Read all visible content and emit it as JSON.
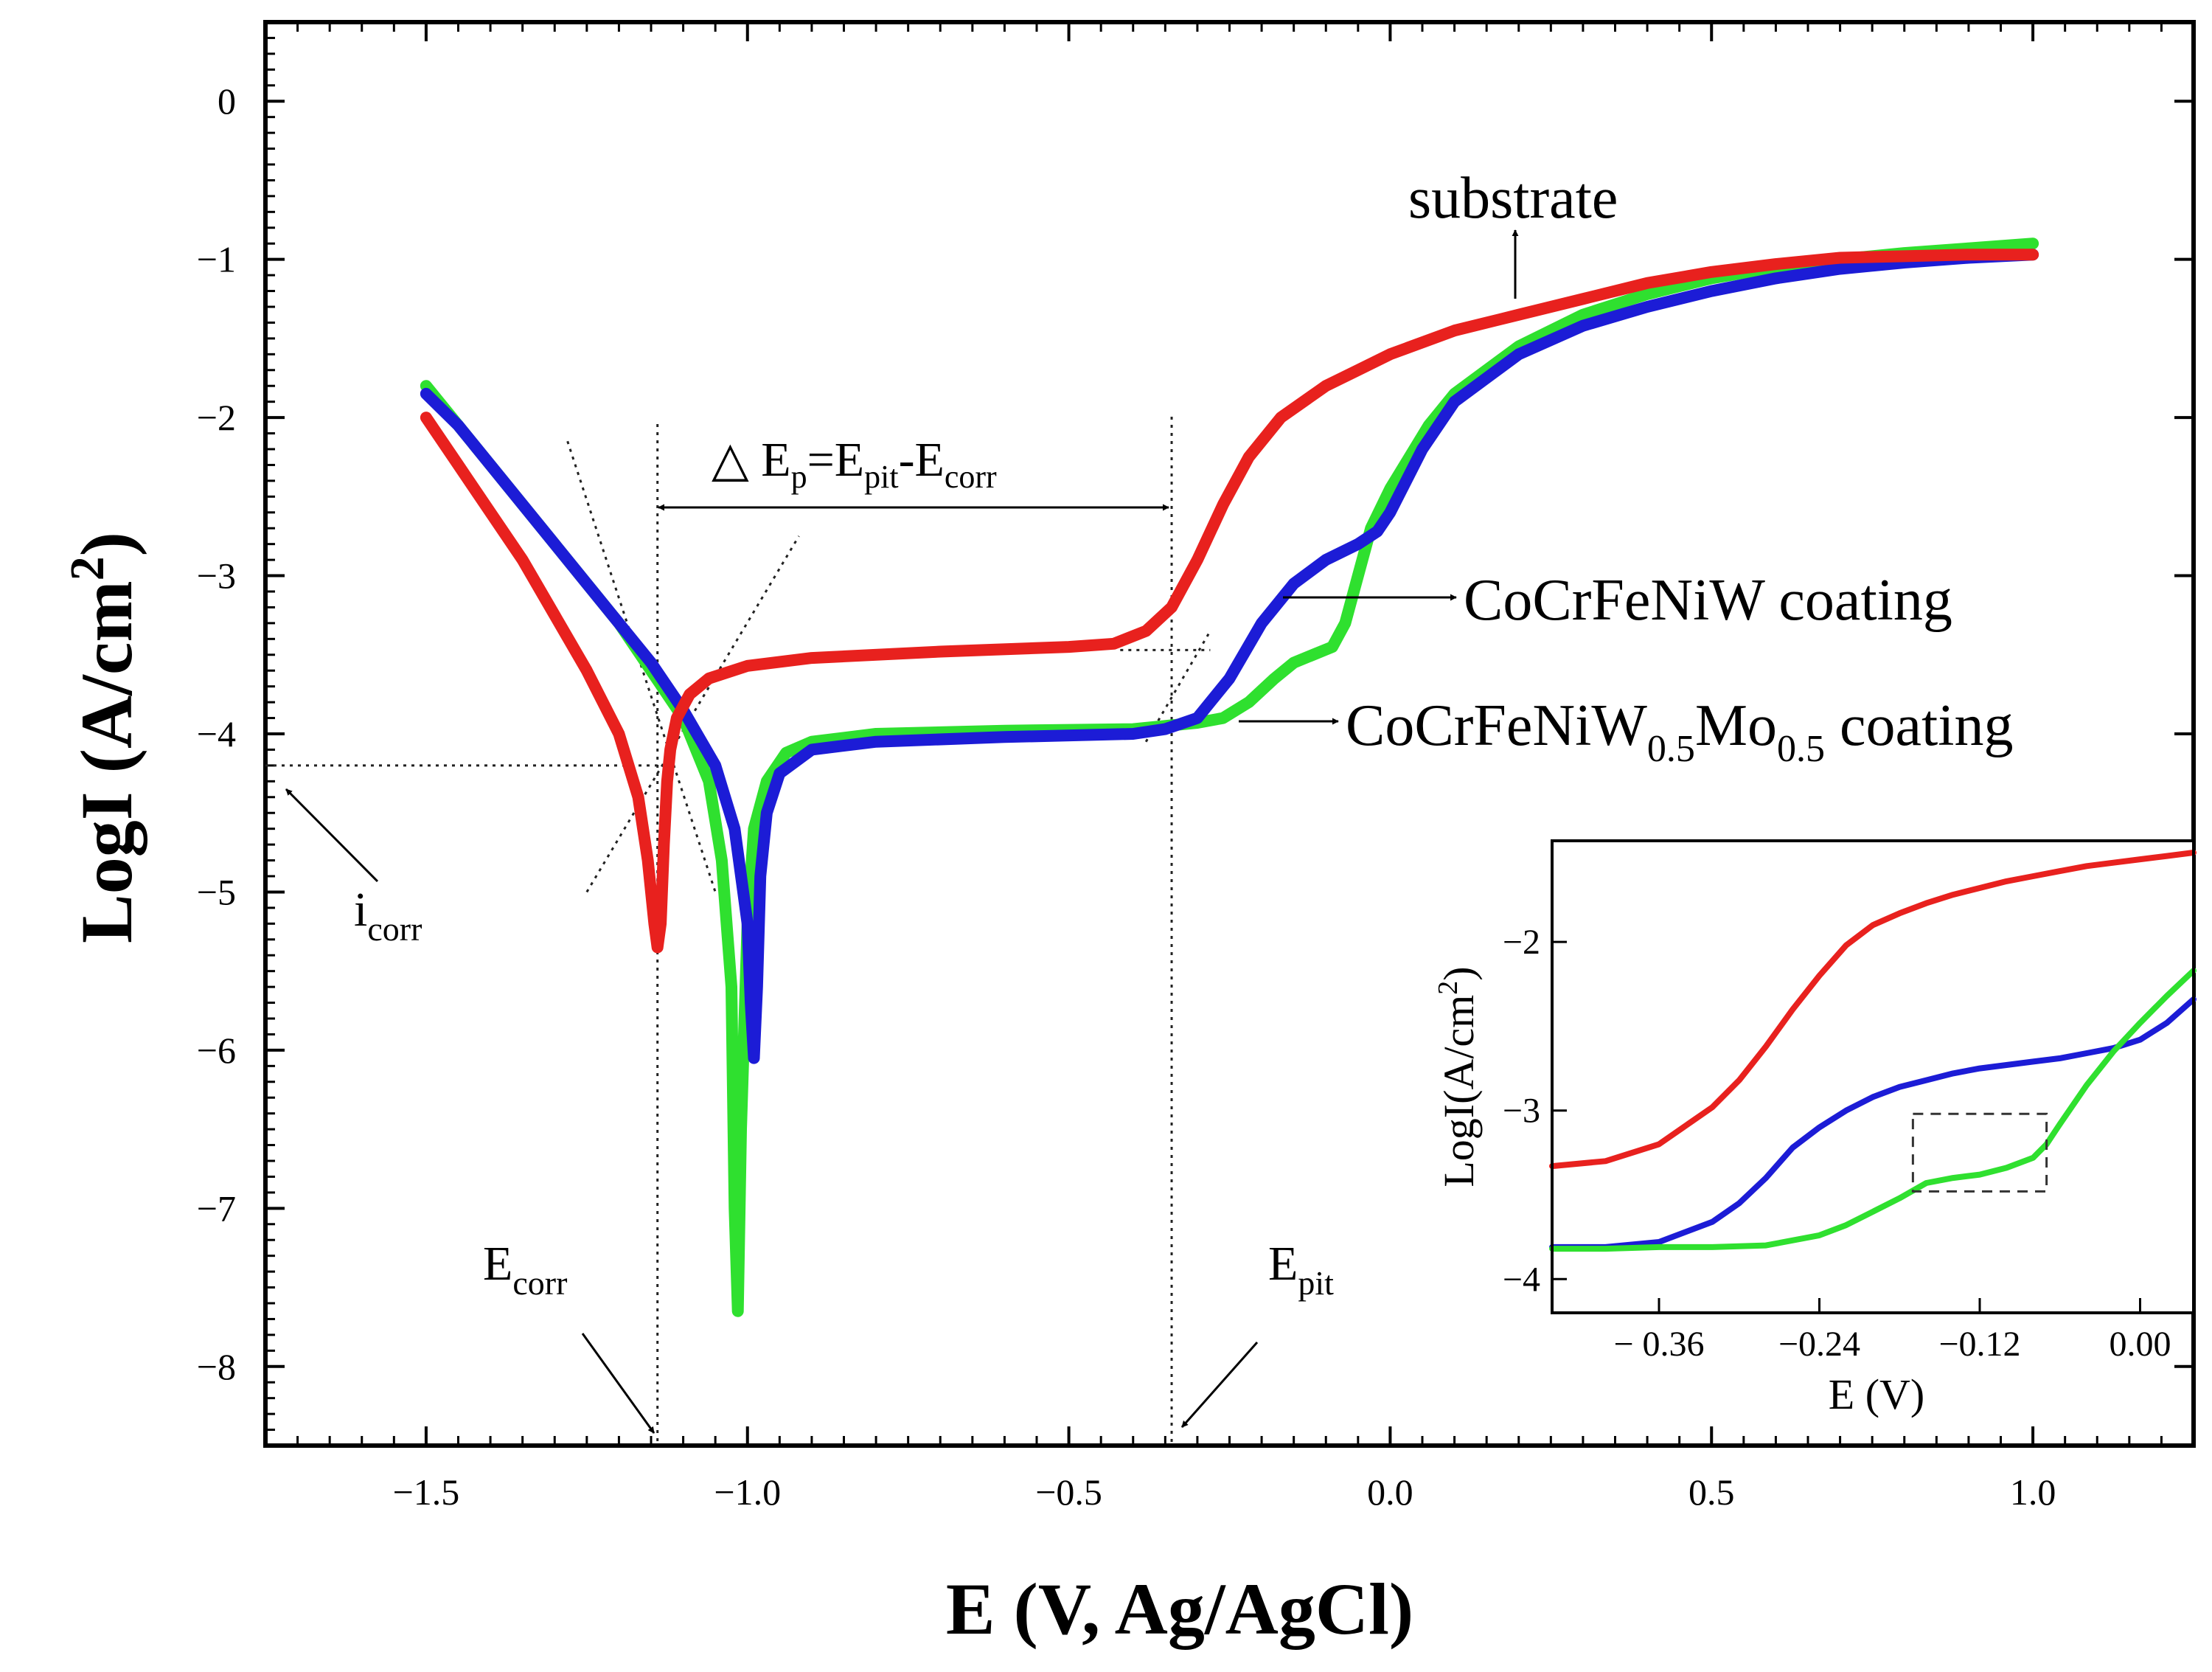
{
  "chart_data": [
    {
      "type": "line",
      "title": "",
      "xlabel": "E (V, Ag/AgCl)",
      "ylabel": "LogI (A/cm2)",
      "ylabel_parts": {
        "main": "LogI (A/cm",
        "sup": "2",
        "close": ")"
      },
      "xlim": [
        -1.75,
        1.25
      ],
      "ylim": [
        -8.5,
        0.5
      ],
      "xticks": [
        -1.5,
        -1.0,
        -0.5,
        0.0,
        0.5,
        1.0
      ],
      "xtick_labels": [
        "−1.5",
        "−1.0",
        "−0.5",
        "0.0",
        "0.5",
        "1.0"
      ],
      "yticks": [
        0,
        -1,
        -2,
        -3,
        -4,
        -5,
        -6,
        -7,
        -8
      ],
      "ytick_labels": [
        "0",
        "−1",
        "−2",
        "−3",
        "−4",
        "−5",
        "−6",
        "−7",
        "−8"
      ],
      "series": [
        {
          "name": "substrate",
          "color": "#e8211e",
          "x": [
            -1.5,
            -1.45,
            -1.4,
            -1.35,
            -1.3,
            -1.25,
            -1.2,
            -1.17,
            -1.155,
            -1.145,
            -1.14,
            -1.135,
            -1.13,
            -1.125,
            -1.12,
            -1.11,
            -1.09,
            -1.06,
            -1.0,
            -0.9,
            -0.7,
            -0.5,
            -0.43,
            -0.38,
            -0.34,
            -0.3,
            -0.26,
            -0.22,
            -0.17,
            -0.1,
            -0.05,
            0.0,
            0.1,
            0.2,
            0.3,
            0.4,
            0.5,
            0.6,
            0.7,
            0.8,
            0.9,
            1.0
          ],
          "y": [
            -2.0,
            -2.3,
            -2.6,
            -2.9,
            -3.25,
            -3.6,
            -4.0,
            -4.4,
            -4.8,
            -5.2,
            -5.35,
            -5.2,
            -4.7,
            -4.3,
            -4.1,
            -3.9,
            -3.75,
            -3.65,
            -3.57,
            -3.52,
            -3.48,
            -3.45,
            -3.43,
            -3.35,
            -3.2,
            -2.9,
            -2.55,
            -2.25,
            -2.0,
            -1.8,
            -1.7,
            -1.6,
            -1.45,
            -1.35,
            -1.25,
            -1.15,
            -1.08,
            -1.03,
            -0.99,
            -0.98,
            -0.97,
            -0.97
          ]
        },
        {
          "name": "CoCrFeNiW coating",
          "color": "#1c1cd6",
          "x": [
            -1.5,
            -1.45,
            -1.4,
            -1.35,
            -1.3,
            -1.25,
            -1.2,
            -1.15,
            -1.1,
            -1.05,
            -1.02,
            -1.0,
            -0.995,
            -0.99,
            -0.985,
            -0.98,
            -0.97,
            -0.95,
            -0.9,
            -0.8,
            -0.6,
            -0.4,
            -0.35,
            -0.3,
            -0.25,
            -0.2,
            -0.15,
            -0.1,
            -0.05,
            -0.02,
            0.0,
            0.05,
            0.1,
            0.2,
            0.3,
            0.4,
            0.5,
            0.6,
            0.7,
            0.8,
            0.9,
            1.0
          ],
          "y": [
            -1.85,
            -2.05,
            -2.3,
            -2.55,
            -2.8,
            -3.05,
            -3.3,
            -3.55,
            -3.85,
            -4.2,
            -4.6,
            -5.2,
            -5.7,
            -6.05,
            -5.6,
            -4.9,
            -4.5,
            -4.25,
            -4.1,
            -4.05,
            -4.02,
            -4.0,
            -3.97,
            -3.9,
            -3.65,
            -3.3,
            -3.05,
            -2.9,
            -2.8,
            -2.72,
            -2.6,
            -2.2,
            -1.9,
            -1.6,
            -1.42,
            -1.3,
            -1.2,
            -1.12,
            -1.06,
            -1.02,
            -0.99,
            -0.97
          ]
        },
        {
          "name": "CoCrFeNiW0.5Mo0.5 coating",
          "color": "#2fe02f",
          "x": [
            -1.5,
            -1.45,
            -1.4,
            -1.35,
            -1.3,
            -1.25,
            -1.2,
            -1.15,
            -1.1,
            -1.06,
            -1.04,
            -1.025,
            -1.02,
            -1.015,
            -1.01,
            -1.0,
            -0.99,
            -0.97,
            -0.94,
            -0.9,
            -0.8,
            -0.6,
            -0.4,
            -0.3,
            -0.26,
            -0.22,
            -0.18,
            -0.15,
            -0.12,
            -0.09,
            -0.07,
            -0.05,
            -0.03,
            0.0,
            0.03,
            0.06,
            0.1,
            0.2,
            0.3,
            0.4,
            0.5,
            0.6,
            0.7,
            0.8,
            0.9,
            1.0
          ],
          "y": [
            -1.8,
            -2.05,
            -2.3,
            -2.55,
            -2.8,
            -3.05,
            -3.3,
            -3.6,
            -3.9,
            -4.3,
            -4.8,
            -5.6,
            -7.0,
            -7.65,
            -6.5,
            -5.2,
            -4.6,
            -4.3,
            -4.12,
            -4.05,
            -4.0,
            -3.98,
            -3.97,
            -3.93,
            -3.9,
            -3.8,
            -3.65,
            -3.55,
            -3.5,
            -3.45,
            -3.3,
            -3.0,
            -2.7,
            -2.45,
            -2.25,
            -2.05,
            -1.85,
            -1.55,
            -1.35,
            -1.22,
            -1.12,
            -1.05,
            -1.0,
            -0.96,
            -0.93,
            -0.9
          ]
        }
      ],
      "annotations": {
        "substrate_label": "substrate",
        "coating1_label": "CoCrFeNiW coating",
        "coating2_label_main": "CoCrFeNiW",
        "coating2_sub1": "0.5",
        "coating2_mid": "Mo",
        "coating2_sub2": "0.5",
        "coating2_tail": " coating",
        "delta_prefix": "△ E",
        "delta_sub_p": "p",
        "delta_eq": "=E",
        "delta_sub_pit": "pit",
        "delta_minus": "-E",
        "delta_sub_corr": "corr",
        "icorr_main": "i",
        "icorr_sub": "corr",
        "ecorr_main": "E",
        "ecorr_sub": "corr",
        "epit_main": "E",
        "epit_sub": "pit",
        "ecorr_value": -1.14,
        "epit_value": -0.34,
        "icorr_value": -4.2
      }
    },
    {
      "type": "line",
      "title": "",
      "xlabel": "E (V)",
      "ylabel": "LogI(A/cm2)",
      "ylabel_parts": {
        "main": "LogI(A/cm",
        "sup": "2",
        "close": ")"
      },
      "xlim": [
        -0.44,
        0.04
      ],
      "ylim": [
        -4.2,
        -1.4
      ],
      "xticks": [
        -0.36,
        -0.24,
        -0.12,
        0.0
      ],
      "xtick_labels": [
        "− 0.36",
        "−0.24",
        "−0.12",
        "0.00"
      ],
      "yticks": [
        -2,
        -3,
        -4
      ],
      "ytick_labels": [
        "−2",
        "−3",
        "−4"
      ],
      "zoom_box": {
        "x": [
          -0.17,
          -0.07
        ],
        "y": [
          -3.48,
          -3.02
        ]
      },
      "series": [
        {
          "name": "substrate",
          "color": "#e8211e",
          "x": [
            -0.44,
            -0.4,
            -0.36,
            -0.32,
            -0.3,
            -0.28,
            -0.26,
            -0.24,
            -0.22,
            -0.2,
            -0.18,
            -0.16,
            -0.14,
            -0.12,
            -0.1,
            -0.08,
            -0.06,
            -0.04,
            -0.02,
            0.0,
            0.02,
            0.04
          ],
          "y": [
            -3.33,
            -3.3,
            -3.2,
            -2.98,
            -2.82,
            -2.62,
            -2.4,
            -2.2,
            -2.02,
            -1.9,
            -1.83,
            -1.77,
            -1.72,
            -1.68,
            -1.64,
            -1.61,
            -1.58,
            -1.55,
            -1.53,
            -1.51,
            -1.49,
            -1.47
          ]
        },
        {
          "name": "CoCrFeNiW coating",
          "color": "#1c1cd6",
          "x": [
            -0.44,
            -0.4,
            -0.36,
            -0.32,
            -0.3,
            -0.28,
            -0.26,
            -0.24,
            -0.22,
            -0.2,
            -0.18,
            -0.16,
            -0.14,
            -0.12,
            -0.1,
            -0.08,
            -0.06,
            -0.04,
            -0.02,
            0.0,
            0.02,
            0.04
          ],
          "y": [
            -3.81,
            -3.81,
            -3.78,
            -3.66,
            -3.55,
            -3.4,
            -3.22,
            -3.1,
            -3.0,
            -2.92,
            -2.86,
            -2.82,
            -2.78,
            -2.75,
            -2.73,
            -2.71,
            -2.69,
            -2.66,
            -2.63,
            -2.58,
            -2.48,
            -2.34
          ]
        },
        {
          "name": "CoCrFeNiW0.5Mo0.5 coating",
          "color": "#2fe02f",
          "x": [
            -0.44,
            -0.4,
            -0.36,
            -0.32,
            -0.28,
            -0.24,
            -0.22,
            -0.2,
            -0.18,
            -0.16,
            -0.14,
            -0.12,
            -0.1,
            -0.08,
            -0.07,
            -0.06,
            -0.04,
            -0.02,
            0.0,
            0.02,
            0.04
          ],
          "y": [
            -3.82,
            -3.82,
            -3.81,
            -3.81,
            -3.8,
            -3.74,
            -3.68,
            -3.6,
            -3.52,
            -3.43,
            -3.4,
            -3.38,
            -3.34,
            -3.28,
            -3.2,
            -3.08,
            -2.85,
            -2.65,
            -2.48,
            -2.32,
            -2.17
          ]
        }
      ]
    }
  ]
}
